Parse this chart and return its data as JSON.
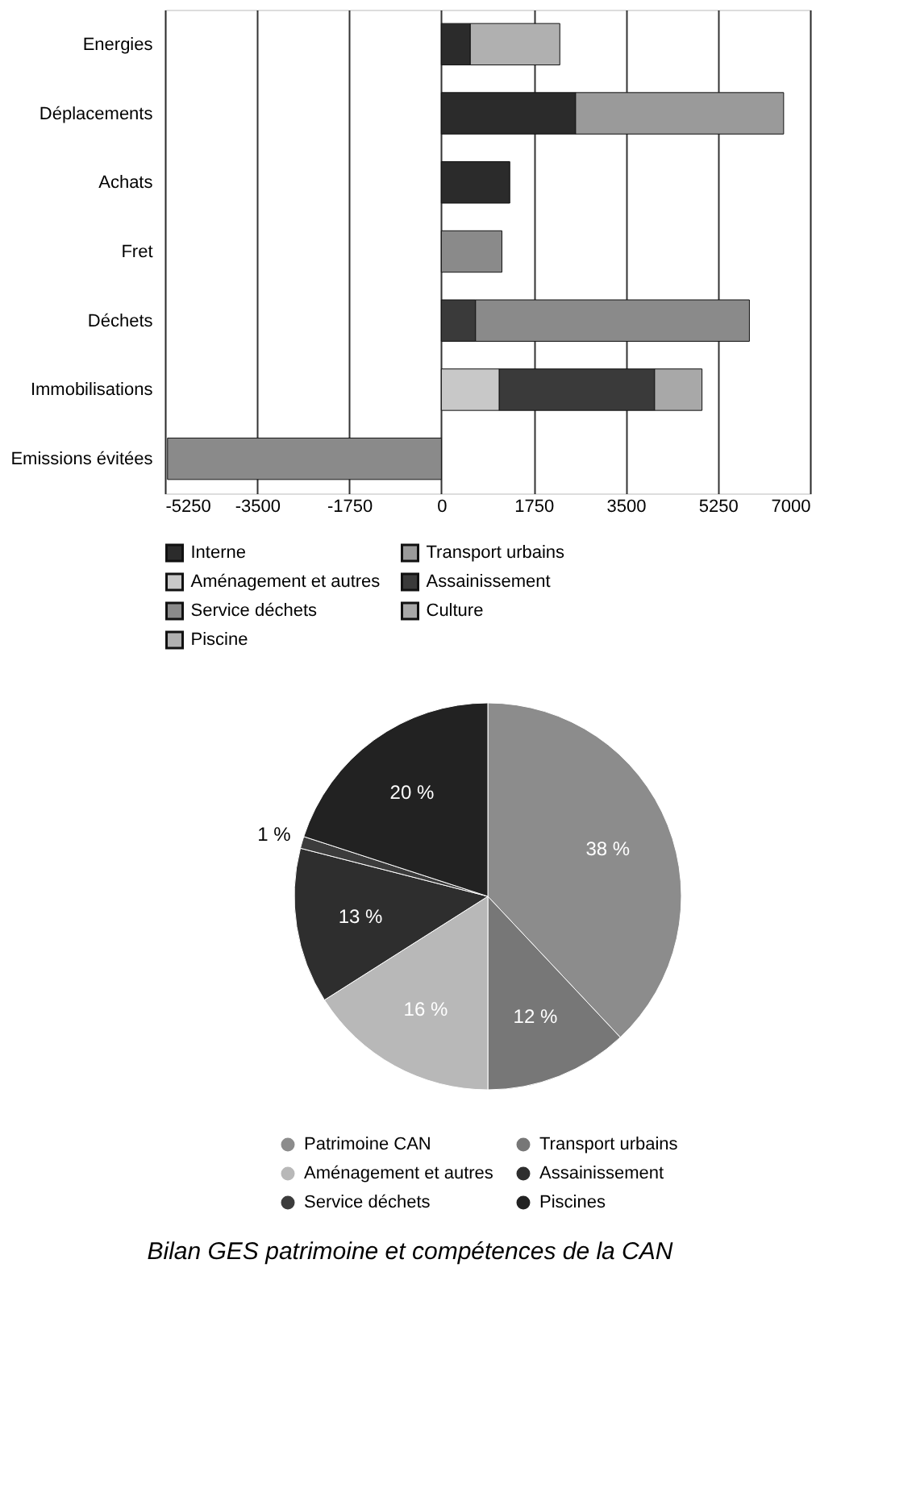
{
  "chart_data": [
    {
      "type": "bar",
      "orientation": "horizontal",
      "stacked": true,
      "categories": [
        "Energies",
        "Déplacements",
        "Achats",
        "Fret",
        "Déchets",
        "Immobilisations",
        "Emissions évitées"
      ],
      "series": [
        {
          "name": "Interne",
          "color": "#2b2b2b",
          "values": [
            550,
            2550,
            1300,
            null,
            null,
            null,
            null
          ]
        },
        {
          "name": "Transport urbains",
          "color": "#9a9a9a",
          "values": [
            null,
            3950,
            null,
            null,
            null,
            null,
            null
          ]
        },
        {
          "name": "Aménagement et autres",
          "color": "#c8c8c8",
          "values": [
            null,
            null,
            null,
            null,
            null,
            1100,
            null
          ]
        },
        {
          "name": "Assainissement",
          "color": "#3a3a3a",
          "values": [
            null,
            null,
            null,
            null,
            650,
            2950,
            null
          ]
        },
        {
          "name": "Service déchets",
          "color": "#8a8a8a",
          "values": [
            null,
            null,
            null,
            1150,
            5200,
            null,
            -5200
          ]
        },
        {
          "name": "Culture",
          "color": "#a8a8a8",
          "values": [
            null,
            null,
            null,
            null,
            null,
            900,
            null
          ]
        },
        {
          "name": "Piscine",
          "color": "#b0b0b0",
          "values": [
            1700,
            null,
            null,
            null,
            null,
            null,
            null
          ]
        }
      ],
      "xlim": [
        -5250,
        7000
      ],
      "xticks": [
        -5250,
        -3500,
        -1750,
        0,
        1750,
        3500,
        5250,
        7000
      ],
      "grid": "x",
      "legend": "bottom"
    },
    {
      "type": "pie",
      "categories": [
        "Patrimoine CAN",
        "Transport urbains",
        "Aménagement et autres",
        "Assainissement",
        "Service déchets",
        "Piscines"
      ],
      "values": [
        38,
        12,
        16,
        13,
        1,
        20
      ],
      "value_labels": [
        "38 %",
        "12 %",
        "16 %",
        "13 %",
        "1 %",
        "20 %"
      ],
      "colors": [
        "#8c8c8c",
        "#777777",
        "#b8b8b8",
        "#2e2e2e",
        "#3c3c3c",
        "#222222"
      ],
      "legend": "bottom",
      "annotations": [
        "Bilan GES patrimoine et compétences de la CAN"
      ]
    }
  ]
}
